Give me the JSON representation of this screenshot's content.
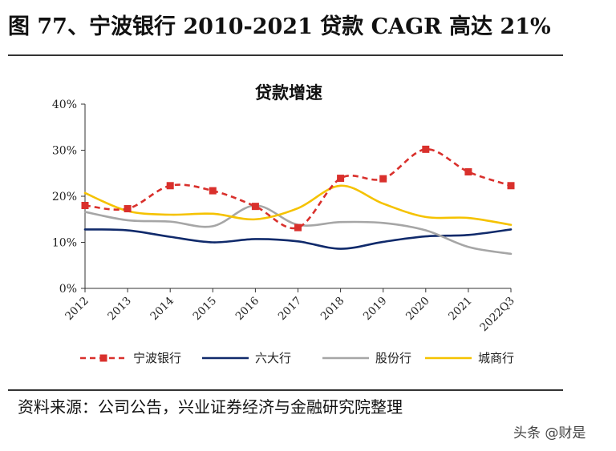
{
  "figure": {
    "title": "图 77、宁波银行 2010-2021 贷款 CAGR 高达 21%",
    "source": "资料来源：公司公告，兴业证券经济与金融研究院整理",
    "watermark": "头条 @财是"
  },
  "chart_data": {
    "type": "line",
    "title": "贷款增速",
    "xlabel": "",
    "ylabel": "",
    "categories": [
      "2012",
      "2013",
      "2014",
      "2015",
      "2016",
      "2017",
      "2018",
      "2019",
      "2020",
      "2021",
      "2022Q3"
    ],
    "yticks": [
      "0%",
      "10%",
      "20%",
      "30%",
      "40%"
    ],
    "ylim": [
      0,
      40
    ],
    "grid": false,
    "legend": "bottom",
    "series": [
      {
        "name": "宁波银行",
        "color": "#d9302c",
        "dashed": true,
        "markers": true,
        "values": [
          18.0,
          17.3,
          22.3,
          21.2,
          17.8,
          13.2,
          23.9,
          23.8,
          30.2,
          25.3,
          22.3
        ]
      },
      {
        "name": "六大行",
        "color": "#102a6b",
        "dashed": false,
        "markers": false,
        "values": [
          12.8,
          12.6,
          11.2,
          10.0,
          10.7,
          10.2,
          8.6,
          10.1,
          11.3,
          11.6,
          12.8
        ]
      },
      {
        "name": "股份行",
        "color": "#a6a6a6",
        "dashed": false,
        "markers": false,
        "values": [
          16.6,
          14.8,
          14.5,
          13.5,
          18.0,
          13.8,
          14.4,
          14.2,
          12.6,
          9.0,
          7.5
        ]
      },
      {
        "name": "城商行",
        "color": "#f5c200",
        "dashed": false,
        "markers": false,
        "values": [
          20.7,
          16.8,
          16.0,
          16.2,
          15.0,
          17.4,
          22.3,
          18.4,
          15.5,
          15.3,
          13.8
        ]
      }
    ]
  }
}
